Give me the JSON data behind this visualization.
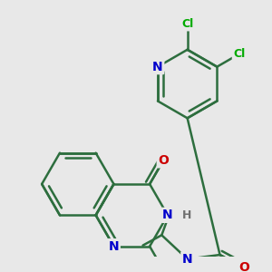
{
  "bg_color": "#e8e8e8",
  "bond_color": "#2d6e3e",
  "bond_width": 1.8,
  "atom_colors": {
    "N": "#0000cc",
    "O": "#cc0000",
    "Cl": "#00aa00",
    "H": "#707070"
  },
  "font_size": 10,
  "font_size_cl": 9
}
